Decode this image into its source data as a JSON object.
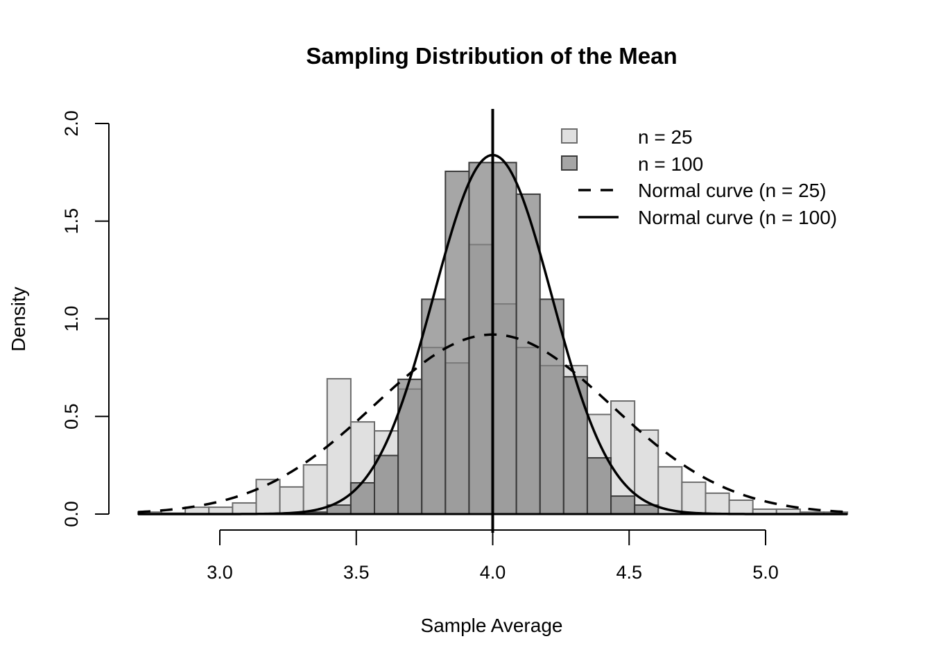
{
  "chart_data": {
    "type": "bar",
    "title": "Sampling Distribution of the Mean",
    "xlabel": "Sample Average",
    "ylabel": "Density",
    "xlim": [
      2.7,
      5.3
    ],
    "ylim": [
      0,
      2.0
    ],
    "x_ticks": [
      3.0,
      3.5,
      4.0,
      4.5,
      5.0
    ],
    "x_tick_labels": [
      "3.0",
      "3.5",
      "4.0",
      "4.5",
      "5.0"
    ],
    "y_ticks": [
      0.0,
      0.5,
      1.0,
      1.5,
      2.0
    ],
    "y_tick_labels": [
      "0.0",
      "0.5",
      "1.0",
      "1.5",
      "2.0"
    ],
    "grid": false,
    "legend_position": "top-right",
    "bin_start": 2.7,
    "bin_width": 0.08667,
    "series": [
      {
        "name": "n = 25",
        "kind": "histogram",
        "fill": "#e0e0e0",
        "stroke": "#6b6b6b",
        "values": [
          0.01,
          0.005,
          0.035,
          0.035,
          0.057,
          0.177,
          0.139,
          0.252,
          0.693,
          0.472,
          0.426,
          0.64,
          0.853,
          0.774,
          1.38,
          1.076,
          0.853,
          0.76,
          0.76,
          0.51,
          0.579,
          0.43,
          0.242,
          0.163,
          0.107,
          0.071,
          0.025,
          0.025,
          0.01,
          0.01
        ]
      },
      {
        "name": "n = 100",
        "kind": "histogram",
        "fill": "#808080",
        "fill_opacity": 0.7,
        "stroke": "#3a3a3a",
        "values": [
          0,
          0,
          0,
          0,
          0,
          0,
          0,
          0.01,
          0.046,
          0.16,
          0.3,
          0.69,
          1.1,
          1.755,
          1.8,
          1.8,
          1.638,
          1.1,
          0.703,
          0.288,
          0.092,
          0.046,
          0,
          0,
          0,
          0,
          0,
          0,
          0,
          0
        ]
      },
      {
        "name": "Normal curve (n = 25)",
        "kind": "normal-curve",
        "mean": 4.0,
        "sd": 0.434,
        "line_style": "dashed"
      },
      {
        "name": "Normal curve (n = 100)",
        "kind": "normal-curve",
        "mean": 4.0,
        "sd": 0.217,
        "line_style": "solid"
      }
    ],
    "annotations": [
      {
        "kind": "vertical-line",
        "x": 4.0,
        "label": ""
      }
    ],
    "legend": [
      {
        "label": "n = 25",
        "symbol": "box-light"
      },
      {
        "label": "n = 100",
        "symbol": "box-dark"
      },
      {
        "label": "Normal curve (n = 25)",
        "symbol": "dashed-line"
      },
      {
        "label": "Normal curve (n = 100)",
        "symbol": "solid-line"
      }
    ]
  }
}
